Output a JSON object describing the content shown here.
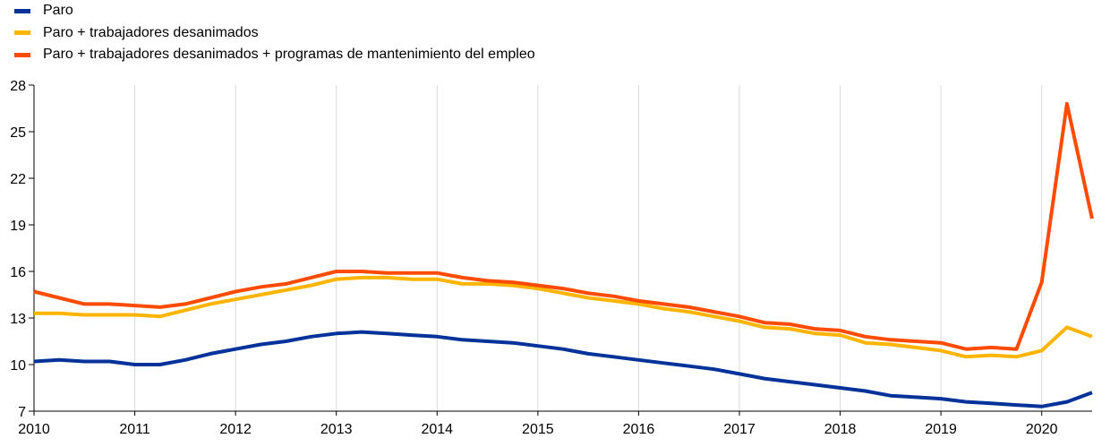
{
  "chart_data": {
    "type": "line",
    "title": "",
    "xlabel": "",
    "ylabel": "",
    "ylim": [
      7,
      28
    ],
    "yticks": [
      7,
      10,
      13,
      16,
      19,
      22,
      25,
      28
    ],
    "xticks": [
      "2010",
      "2011",
      "2012",
      "2013",
      "2014",
      "2015",
      "2016",
      "2017",
      "2018",
      "2019",
      "2020"
    ],
    "xlim": [
      2010.0,
      2020.5
    ],
    "grid": "vertical",
    "legend": "top-left",
    "x": [
      2010.0,
      2010.25,
      2010.5,
      2010.75,
      2011.0,
      2011.25,
      2011.5,
      2011.75,
      2012.0,
      2012.25,
      2012.5,
      2012.75,
      2013.0,
      2013.25,
      2013.5,
      2013.75,
      2014.0,
      2014.25,
      2014.5,
      2014.75,
      2015.0,
      2015.25,
      2015.5,
      2015.75,
      2016.0,
      2016.25,
      2016.5,
      2016.75,
      2017.0,
      2017.25,
      2017.5,
      2017.75,
      2018.0,
      2018.25,
      2018.5,
      2018.75,
      2019.0,
      2019.25,
      2019.5,
      2019.75,
      2020.0,
      2020.25,
      2020.5
    ],
    "series": [
      {
        "name": "Paro",
        "color": "#003299",
        "values": [
          10.2,
          10.3,
          10.2,
          10.2,
          10.0,
          10.0,
          10.3,
          10.7,
          11.0,
          11.3,
          11.5,
          11.8,
          12.0,
          12.1,
          12.0,
          11.9,
          11.8,
          11.6,
          11.5,
          11.4,
          11.2,
          11.0,
          10.7,
          10.5,
          10.3,
          10.1,
          9.9,
          9.7,
          9.4,
          9.1,
          8.9,
          8.7,
          8.5,
          8.3,
          8.0,
          7.9,
          7.8,
          7.6,
          7.5,
          7.4,
          7.3,
          7.6,
          8.2
        ]
      },
      {
        "name": "Paro + trabajadores desanimados",
        "color": "#ffb400",
        "values": [
          13.3,
          13.3,
          13.2,
          13.2,
          13.2,
          13.1,
          13.5,
          13.9,
          14.2,
          14.5,
          14.8,
          15.1,
          15.5,
          15.6,
          15.6,
          15.5,
          15.5,
          15.2,
          15.2,
          15.1,
          14.9,
          14.6,
          14.3,
          14.1,
          13.9,
          13.6,
          13.4,
          13.1,
          12.8,
          12.4,
          12.3,
          12.0,
          11.9,
          11.4,
          11.3,
          11.1,
          10.9,
          10.5,
          10.6,
          10.5,
          10.9,
          12.4,
          11.8
        ]
      },
      {
        "name": "Paro + trabajadores desanimados + programas de mantenimiento del empleo",
        "color": "#ff4b00",
        "values": [
          14.7,
          14.3,
          13.9,
          13.9,
          13.8,
          13.7,
          13.9,
          14.3,
          14.7,
          15.0,
          15.2,
          15.6,
          16.0,
          16.0,
          15.9,
          15.9,
          15.9,
          15.6,
          15.4,
          15.3,
          15.1,
          14.9,
          14.6,
          14.4,
          14.1,
          13.9,
          13.7,
          13.4,
          13.1,
          12.7,
          12.6,
          12.3,
          12.2,
          11.8,
          11.6,
          11.5,
          11.4,
          11.0,
          11.1,
          11.0,
          15.3,
          26.8,
          19.4
        ]
      }
    ]
  }
}
